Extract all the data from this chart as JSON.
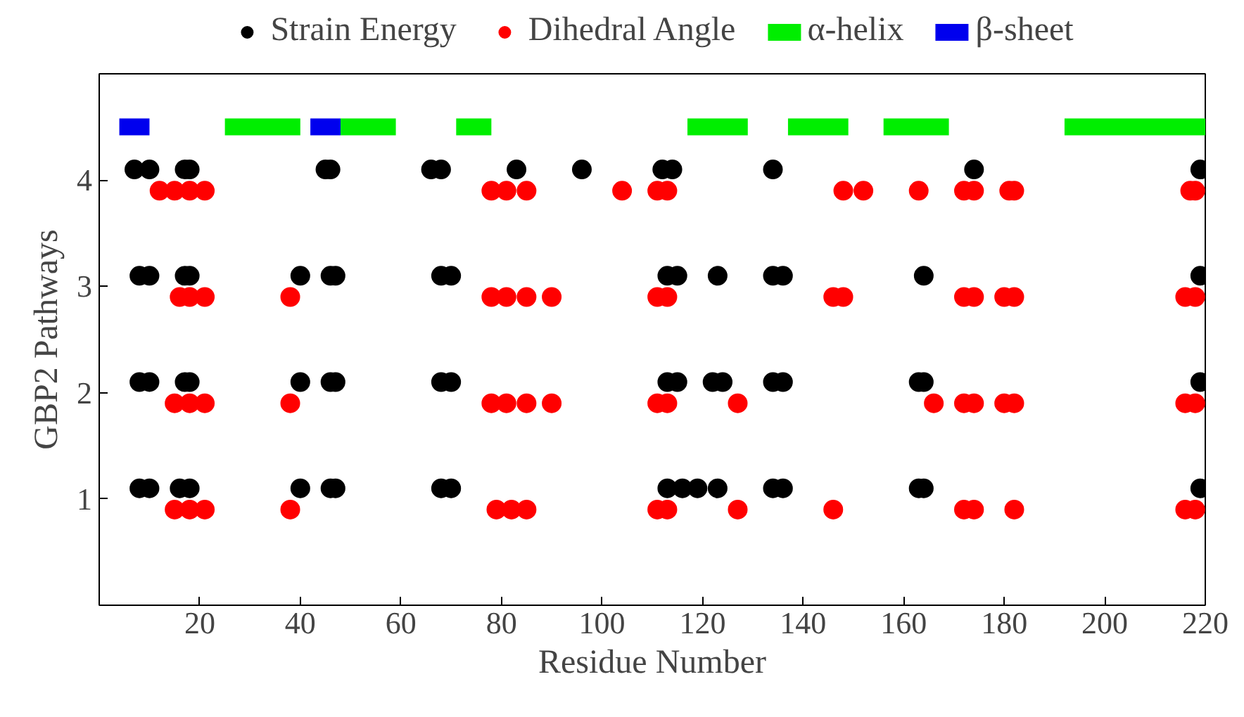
{
  "chart_data": {
    "type": "scatter",
    "xlabel": "Residue Number",
    "ylabel": "GBP2 Pathways",
    "xlim": [
      0,
      220
    ],
    "ylim": [
      0,
      5
    ],
    "xticks": [
      20,
      40,
      60,
      80,
      100,
      120,
      140,
      160,
      180,
      200,
      220
    ],
    "yticks": [
      1,
      2,
      3,
      4
    ],
    "grid": false,
    "legend": "top",
    "marker": "circle",
    "series": [
      {
        "name": "Strain Energy",
        "color": "#000000",
        "x": [
          7,
          10,
          17,
          18,
          45,
          46,
          66,
          68,
          83,
          96,
          112,
          114,
          134,
          174,
          219,
          8,
          10,
          17,
          18,
          40,
          46,
          47,
          68,
          70,
          113,
          115,
          123,
          134,
          136,
          164,
          219,
          8,
          10,
          17,
          18,
          40,
          46,
          47,
          68,
          70,
          113,
          115,
          122,
          124,
          134,
          136,
          163,
          164,
          219,
          8,
          10,
          16,
          18,
          40,
          46,
          47,
          68,
          70,
          113,
          116,
          119,
          123,
          134,
          136,
          163,
          164,
          219
        ],
        "values": [
          4.1,
          4.1,
          4.1,
          4.1,
          4.1,
          4.1,
          4.1,
          4.1,
          4.1,
          4.1,
          4.1,
          4.1,
          4.1,
          4.1,
          4.1,
          3.1,
          3.1,
          3.1,
          3.1,
          3.1,
          3.1,
          3.1,
          3.1,
          3.1,
          3.1,
          3.1,
          3.1,
          3.1,
          3.1,
          3.1,
          3.1,
          2.1,
          2.1,
          2.1,
          2.1,
          2.1,
          2.1,
          2.1,
          2.1,
          2.1,
          2.1,
          2.1,
          2.1,
          2.1,
          2.1,
          2.1,
          2.1,
          2.1,
          2.1,
          1.1,
          1.1,
          1.1,
          1.1,
          1.1,
          1.1,
          1.1,
          1.1,
          1.1,
          1.1,
          1.1,
          1.1,
          1.1,
          1.1,
          1.1,
          1.1,
          1.1,
          1.1
        ]
      },
      {
        "name": "Dihedral Angle",
        "color": "#ff0000",
        "x": [
          12,
          15,
          18,
          21,
          78,
          81,
          85,
          104,
          111,
          113,
          148,
          152,
          163,
          172,
          174,
          181,
          182,
          217,
          218,
          16,
          18,
          21,
          38,
          78,
          81,
          85,
          90,
          111,
          113,
          146,
          148,
          172,
          174,
          180,
          182,
          216,
          218,
          15,
          18,
          21,
          38,
          78,
          81,
          85,
          90,
          111,
          113,
          127,
          166,
          172,
          174,
          180,
          182,
          216,
          218,
          15,
          18,
          21,
          38,
          79,
          82,
          85,
          111,
          113,
          127,
          146,
          172,
          174,
          182,
          216,
          218
        ],
        "values": [
          3.9,
          3.9,
          3.9,
          3.9,
          3.9,
          3.9,
          3.9,
          3.9,
          3.9,
          3.9,
          3.9,
          3.9,
          3.9,
          3.9,
          3.9,
          3.9,
          3.9,
          3.9,
          3.9,
          2.9,
          2.9,
          2.9,
          2.9,
          2.9,
          2.9,
          2.9,
          2.9,
          2.9,
          2.9,
          2.9,
          2.9,
          2.9,
          2.9,
          2.9,
          2.9,
          2.9,
          2.9,
          1.9,
          1.9,
          1.9,
          1.9,
          1.9,
          1.9,
          1.9,
          1.9,
          1.9,
          1.9,
          1.9,
          1.9,
          1.9,
          1.9,
          1.9,
          1.9,
          1.9,
          1.9,
          0.9,
          0.9,
          0.9,
          0.9,
          0.9,
          0.9,
          0.9,
          0.9,
          0.9,
          0.9,
          0.9,
          0.9,
          0.9,
          0.9,
          0.9,
          0.9
        ]
      },
      {
        "name": "α-helix",
        "color": "#00ee00",
        "type": "line",
        "marker": "none",
        "x": [
          25,
          40,
          null,
          48,
          59,
          null,
          71,
          78,
          null,
          117,
          129,
          null,
          137,
          149,
          null,
          156,
          169,
          null,
          192,
          220
        ],
        "values": [
          4.5,
          4.5,
          null,
          4.5,
          4.5,
          null,
          4.5,
          4.5,
          null,
          4.5,
          4.5,
          null,
          4.5,
          4.5,
          null,
          4.5,
          4.5,
          null,
          4.5,
          4.5
        ]
      },
      {
        "name": "β-sheet",
        "color": "#0000ee",
        "type": "line",
        "marker": "none",
        "x": [
          4,
          10,
          null,
          42,
          48
        ],
        "values": [
          4.5,
          4.5,
          null,
          4.5,
          4.5
        ]
      }
    ]
  }
}
